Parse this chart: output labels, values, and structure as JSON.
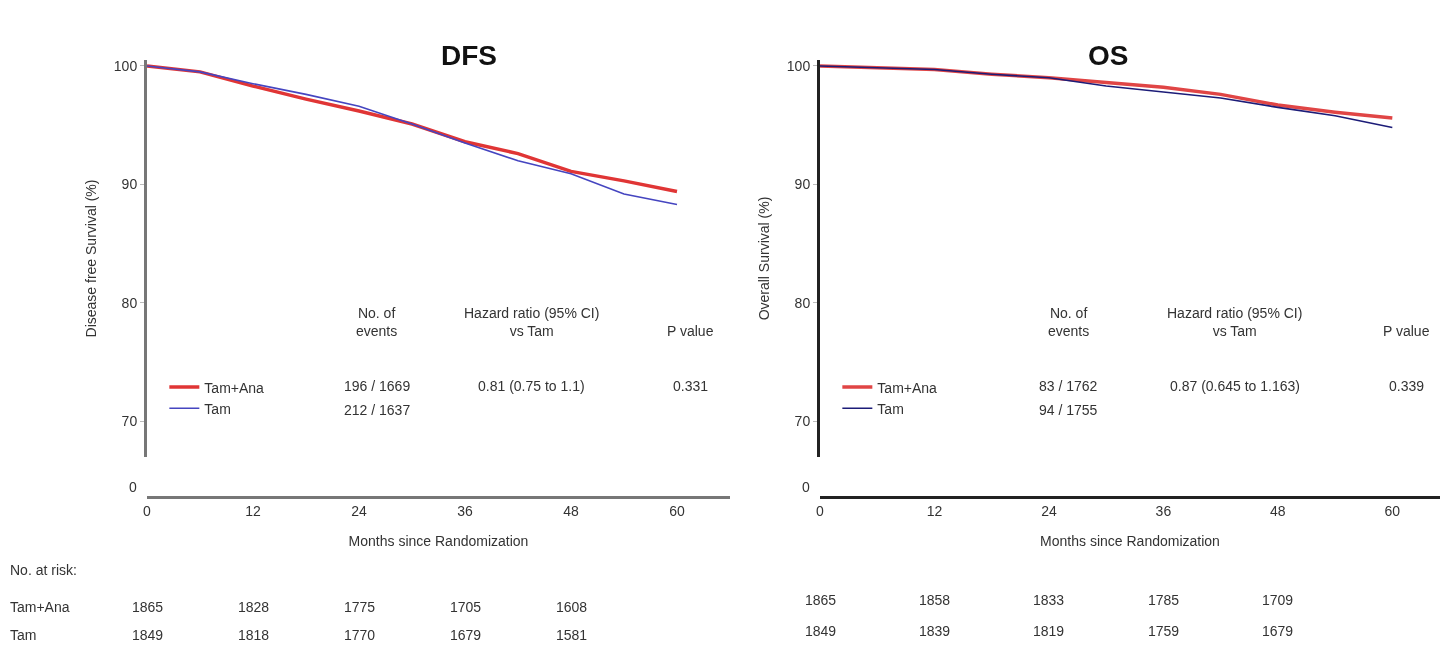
{
  "chart_data": [
    {
      "type": "line",
      "title": "DFS",
      "xlabel": "Months since Randomization",
      "ylabel": "Disease free Survival (%)",
      "xlim": [
        0,
        66
      ],
      "xticks": [
        0,
        12,
        24,
        36,
        48,
        60
      ],
      "ylim": [
        67,
        100.5
      ],
      "yticks": [
        70,
        80,
        90,
        100
      ],
      "legend": "bottom left",
      "series": [
        {
          "name": "Tam+Ana",
          "color": "#e03535",
          "x": [
            0,
            6,
            12,
            18,
            24,
            30,
            36,
            42,
            48,
            54,
            60
          ],
          "values": [
            100,
            99.5,
            98.3,
            97.2,
            96.2,
            95.1,
            93.6,
            92.6,
            91.1,
            90.3,
            89.4
          ]
        },
        {
          "name": "Tam",
          "color": "#4545c0",
          "x": [
            0,
            6,
            12,
            18,
            24,
            30,
            36,
            42,
            48,
            54,
            60
          ],
          "values": [
            100,
            99.5,
            98.5,
            97.6,
            96.6,
            95.1,
            93.5,
            92.0,
            90.9,
            89.2,
            88.3
          ]
        }
      ],
      "annotations": [
        "No. of\nevents",
        "Hazard ratio (95% CI)\nvs Tam",
        "P value",
        "196 / 1669",
        "0.81 (0.75 to 1.1)",
        "0.331",
        "212 / 1637",
        "0",
        "No. at risk:",
        "Tam+Ana",
        "Tam",
        "1865",
        "1828",
        "1775",
        "1705",
        "1608",
        "1849",
        "1818",
        "1770",
        "1679",
        "1581"
      ]
    },
    {
      "type": "line",
      "title": "OS",
      "xlabel": "Months since Randomization",
      "ylabel": "Overall Survival (%)",
      "xlim": [
        0,
        65
      ],
      "xticks": [
        0,
        12,
        24,
        36,
        48,
        60
      ],
      "ylim": [
        67,
        100.5
      ],
      "yticks": [
        70,
        80,
        90,
        100
      ],
      "legend": "bottom left",
      "series": [
        {
          "name": "Tam+Ana",
          "color": "#e04545",
          "x": [
            0,
            12,
            18,
            24,
            30,
            36,
            42,
            48,
            54,
            60
          ],
          "values": [
            100,
            99.7,
            99.3,
            99.0,
            98.6,
            98.2,
            97.6,
            96.7,
            96.1,
            95.6
          ]
        },
        {
          "name": "Tam",
          "color": "#1c1c78",
          "x": [
            0,
            12,
            18,
            24,
            30,
            36,
            42,
            48,
            54,
            60
          ],
          "values": [
            100,
            99.7,
            99.3,
            99.0,
            98.3,
            97.8,
            97.3,
            96.5,
            95.8,
            94.8
          ]
        }
      ],
      "annotations": [
        "No. of\nevents",
        "Hazard ratio (95% CI)\nvs Tam",
        "P value",
        "83 / 1762",
        "0.87 (0.645 to 1.163)",
        "0.339",
        "94 / 1755",
        "0",
        "1865",
        "1858",
        "1833",
        "1785",
        "1709",
        "1849",
        "1839",
        "1819",
        "1759",
        "1679"
      ]
    }
  ]
}
